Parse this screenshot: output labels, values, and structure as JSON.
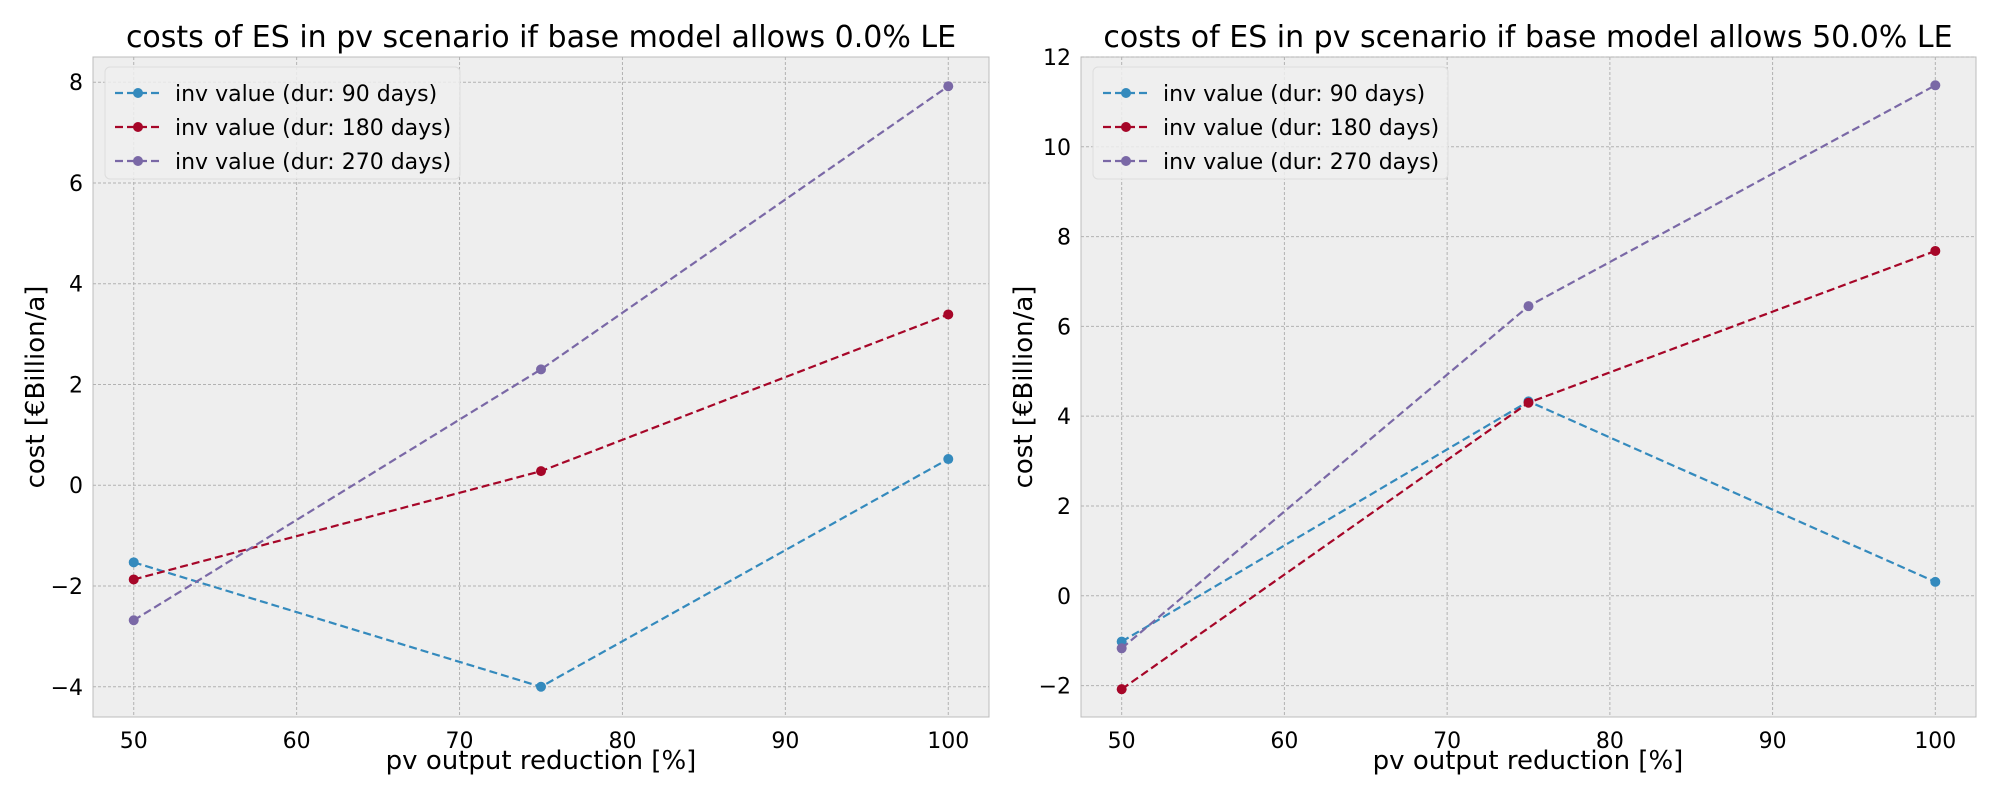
{
  "chart_data": [
    {
      "type": "line",
      "title": "costs of ES in pv scenario if base model allows 0.0% LE",
      "xlabel": "pv output reduction [%]",
      "ylabel": "cost [€Billion/a]",
      "x": [
        50,
        75,
        100
      ],
      "xlim": [
        47.5,
        102.5
      ],
      "ylim": [
        -4.6,
        8.5
      ],
      "xticks": [
        50,
        60,
        70,
        80,
        90,
        100
      ],
      "yticks": [
        -4,
        -2,
        0,
        2,
        4,
        6,
        8
      ],
      "grid": true,
      "legend": "top-left",
      "line_style": "dashed",
      "series": [
        {
          "name": "inv value (dur: 90 days)",
          "color": "#348ABD",
          "values": [
            -1.53,
            -4.0,
            0.52
          ]
        },
        {
          "name": "inv value (dur: 180 days)",
          "color": "#A60628",
          "values": [
            -1.87,
            0.28,
            3.39
          ]
        },
        {
          "name": "inv value (dur: 270 days)",
          "color": "#7A68A6",
          "values": [
            -2.68,
            2.3,
            7.92
          ]
        }
      ]
    },
    {
      "type": "line",
      "title": "costs of ES in pv scenario if base model allows 50.0% LE",
      "xlabel": "pv output reduction [%]",
      "ylabel": "cost [€Billion/a]",
      "x": [
        50,
        75,
        100
      ],
      "xlim": [
        47.5,
        102.5
      ],
      "ylim": [
        -2.7,
        12.0
      ],
      "xticks": [
        50,
        60,
        70,
        80,
        90,
        100
      ],
      "yticks": [
        -2,
        0,
        2,
        4,
        6,
        8,
        10,
        12
      ],
      "grid": true,
      "legend": "top-left",
      "line_style": "dashed",
      "series": [
        {
          "name": "inv value (dur: 90 days)",
          "color": "#348ABD",
          "values": [
            -1.02,
            4.33,
            0.31
          ]
        },
        {
          "name": "inv value (dur: 180 days)",
          "color": "#A60628",
          "values": [
            -2.08,
            4.3,
            7.68
          ]
        },
        {
          "name": "inv value (dur: 270 days)",
          "color": "#7A68A6",
          "values": [
            -1.17,
            6.45,
            11.37
          ]
        }
      ]
    }
  ]
}
